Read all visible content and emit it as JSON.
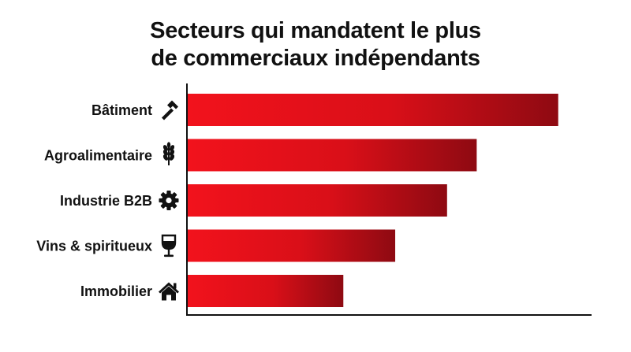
{
  "chart_data": {
    "type": "bar",
    "orientation": "horizontal",
    "title_lines": [
      "Secteurs qui mandatent le plus",
      "de commerciaux indépendants"
    ],
    "categories": [
      "Bâtiment",
      "Agroalimentaire",
      "Industrie B2B",
      "Vins & spiritueux",
      "Immobilier"
    ],
    "category_icons": [
      "hammer-icon",
      "wheat-icon",
      "gear-icon",
      "wine-glass-icon",
      "house-icon"
    ],
    "values": [
      100,
      78,
      70,
      56,
      42
    ],
    "xlim": [
      0,
      109
    ],
    "xlabel": "",
    "ylabel": "",
    "grid": false,
    "legend": "none",
    "colors": {
      "bar_start": "#f2121c",
      "bar_end": "#8e0a12",
      "axis": "#111111",
      "text": "#111111"
    }
  }
}
